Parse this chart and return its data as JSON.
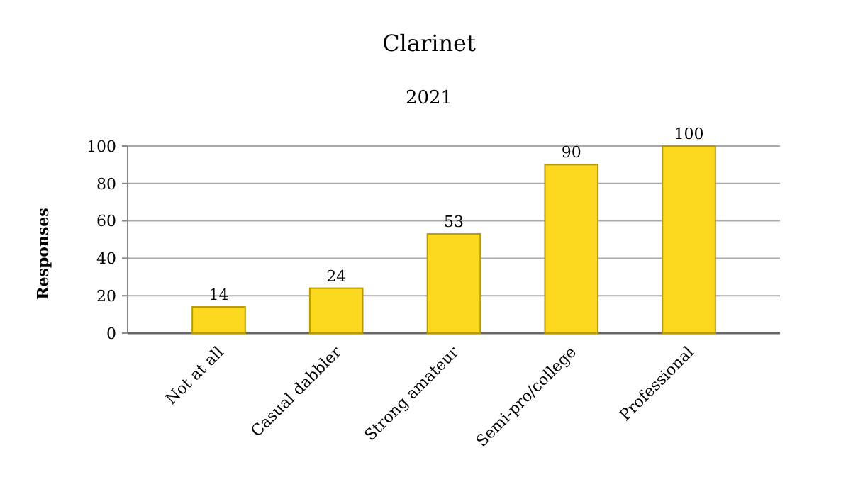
{
  "chart_data": {
    "type": "bar",
    "title": "Clarinet",
    "subtitle": "2021",
    "ylabel": "Responses",
    "categories": [
      "Not at all",
      "Casual dabbler",
      "Strong amateur",
      "Semi-pro/college",
      "Professional"
    ],
    "values": [
      14,
      24,
      53,
      90,
      100
    ],
    "color": "#fcd91f",
    "ylim": [
      0,
      100
    ],
    "yticks": [
      0,
      20,
      40,
      60,
      80,
      100
    ],
    "grid": "y",
    "data_labels": true
  }
}
